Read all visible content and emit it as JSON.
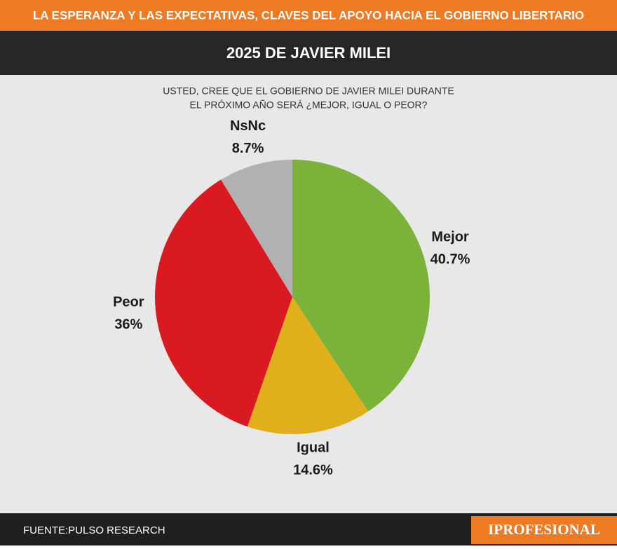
{
  "header": {
    "title": "LA ESPERANZA Y LAS EXPECTATIVAS, CLAVES DEL APOYO HACIA EL GOBIERNO LIBERTARIO",
    "subtitle": "2025 DE JAVIER MILEI"
  },
  "chart_data": {
    "type": "pie",
    "title_lines": [
      "USTED, CREE QUE EL GOBIERNO DE JAVIER MILEI DURANTE",
      "EL PRÓXIMO AÑO SERÁ ¿MEJOR, IGUAL O PEOR?"
    ],
    "categories": [
      "Mejor",
      "Igual",
      "Peor",
      "NsNc"
    ],
    "values": [
      40.7,
      14.6,
      36,
      8.7
    ],
    "value_labels": [
      "40.7%",
      "14.6%",
      "36%",
      "8.7%"
    ],
    "colors": [
      "#7bb33a",
      "#e0b01c",
      "#d91a20",
      "#b1b1b1"
    ]
  },
  "footer": {
    "source": "FUENTE:PULSO RESEARCH",
    "brand": "IPROFESIONAL"
  }
}
